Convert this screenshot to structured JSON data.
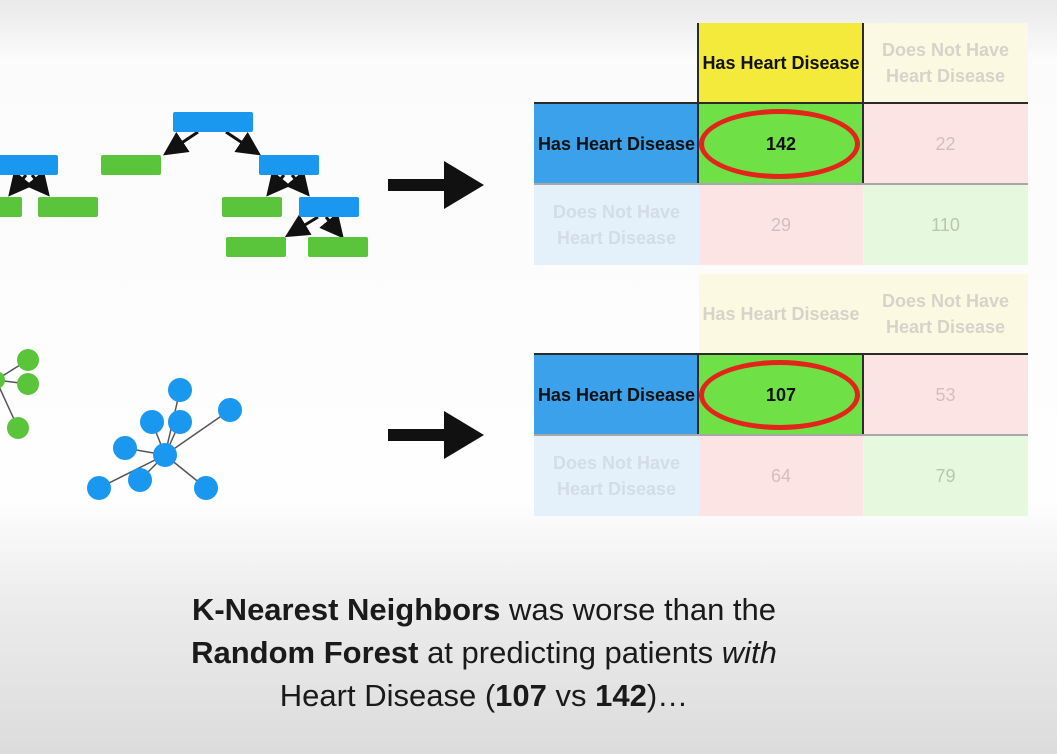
{
  "matrices": [
    {
      "name": "random-forest",
      "col_headers": [
        "Has Heart Disease",
        "Does Not Have Heart Disease"
      ],
      "row_headers": [
        "Has Heart Disease",
        "Does Not Have Heart Disease"
      ],
      "values": [
        [
          "142",
          "22"
        ],
        [
          "29",
          "110"
        ]
      ],
      "highlighted": "142"
    },
    {
      "name": "k-nearest-neighbors",
      "col_headers": [
        "Has Heart Disease",
        "Does Not Have Heart Disease"
      ],
      "row_headers": [
        "Has Heart Disease",
        "Does Not Have Heart Disease"
      ],
      "values": [
        [
          "107",
          "53"
        ],
        [
          "64",
          "79"
        ]
      ],
      "highlighted": "107"
    }
  ],
  "caption": {
    "line1_bold": "K-Nearest Neighbors",
    "line1_rest": " was worse than the",
    "line2_bold": "Random Forest",
    "line2_rest": " at predicting patients ",
    "line2_italic": "with",
    "line3_start": "Heart Disease (",
    "line3_bold1": "107",
    "line3_mid": " vs ",
    "line3_bold2": "142",
    "line3_end": ")…"
  },
  "colors": {
    "tree_node_blue": "#1a97ee",
    "tree_leaf_green": "#5ac43a",
    "knn_blue": "#1a97ee",
    "knn_green": "#5ac43a",
    "highlight_circle": "#e3241b"
  }
}
